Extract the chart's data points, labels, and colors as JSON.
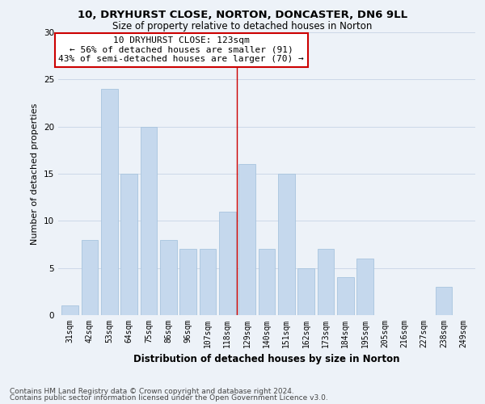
{
  "title1": "10, DRYHURST CLOSE, NORTON, DONCASTER, DN6 9LL",
  "title2": "Size of property relative to detached houses in Norton",
  "xlabel": "Distribution of detached houses by size in Norton",
  "ylabel": "Number of detached properties",
  "categories": [
    "31sqm",
    "42sqm",
    "53sqm",
    "64sqm",
    "75sqm",
    "86sqm",
    "96sqm",
    "107sqm",
    "118sqm",
    "129sqm",
    "140sqm",
    "151sqm",
    "162sqm",
    "173sqm",
    "184sqm",
    "195sqm",
    "205sqm",
    "216sqm",
    "227sqm",
    "238sqm",
    "249sqm"
  ],
  "values": [
    1,
    8,
    24,
    15,
    20,
    8,
    7,
    7,
    11,
    16,
    7,
    15,
    5,
    7,
    4,
    6,
    0,
    0,
    0,
    3,
    0
  ],
  "bar_color": "#c5d8ed",
  "bar_edge_color": "#a8c4de",
  "grid_color": "#ccd8e8",
  "background_color": "#edf2f8",
  "property_line_x": 8.5,
  "property_line_color": "#cc0000",
  "annotation_text": "10 DRYHURST CLOSE: 123sqm\n← 56% of detached houses are smaller (91)\n43% of semi-detached houses are larger (70) →",
  "annotation_box_color": "#ffffff",
  "annotation_box_edge": "#cc0000",
  "footer1": "Contains HM Land Registry data © Crown copyright and database right 2024.",
  "footer2": "Contains public sector information licensed under the Open Government Licence v3.0.",
  "ylim": [
    0,
    30
  ],
  "title1_fontsize": 9.5,
  "title2_fontsize": 8.5,
  "xlabel_fontsize": 8.5,
  "ylabel_fontsize": 8,
  "tick_fontsize": 7,
  "annotation_fontsize": 8,
  "footer_fontsize": 6.5
}
